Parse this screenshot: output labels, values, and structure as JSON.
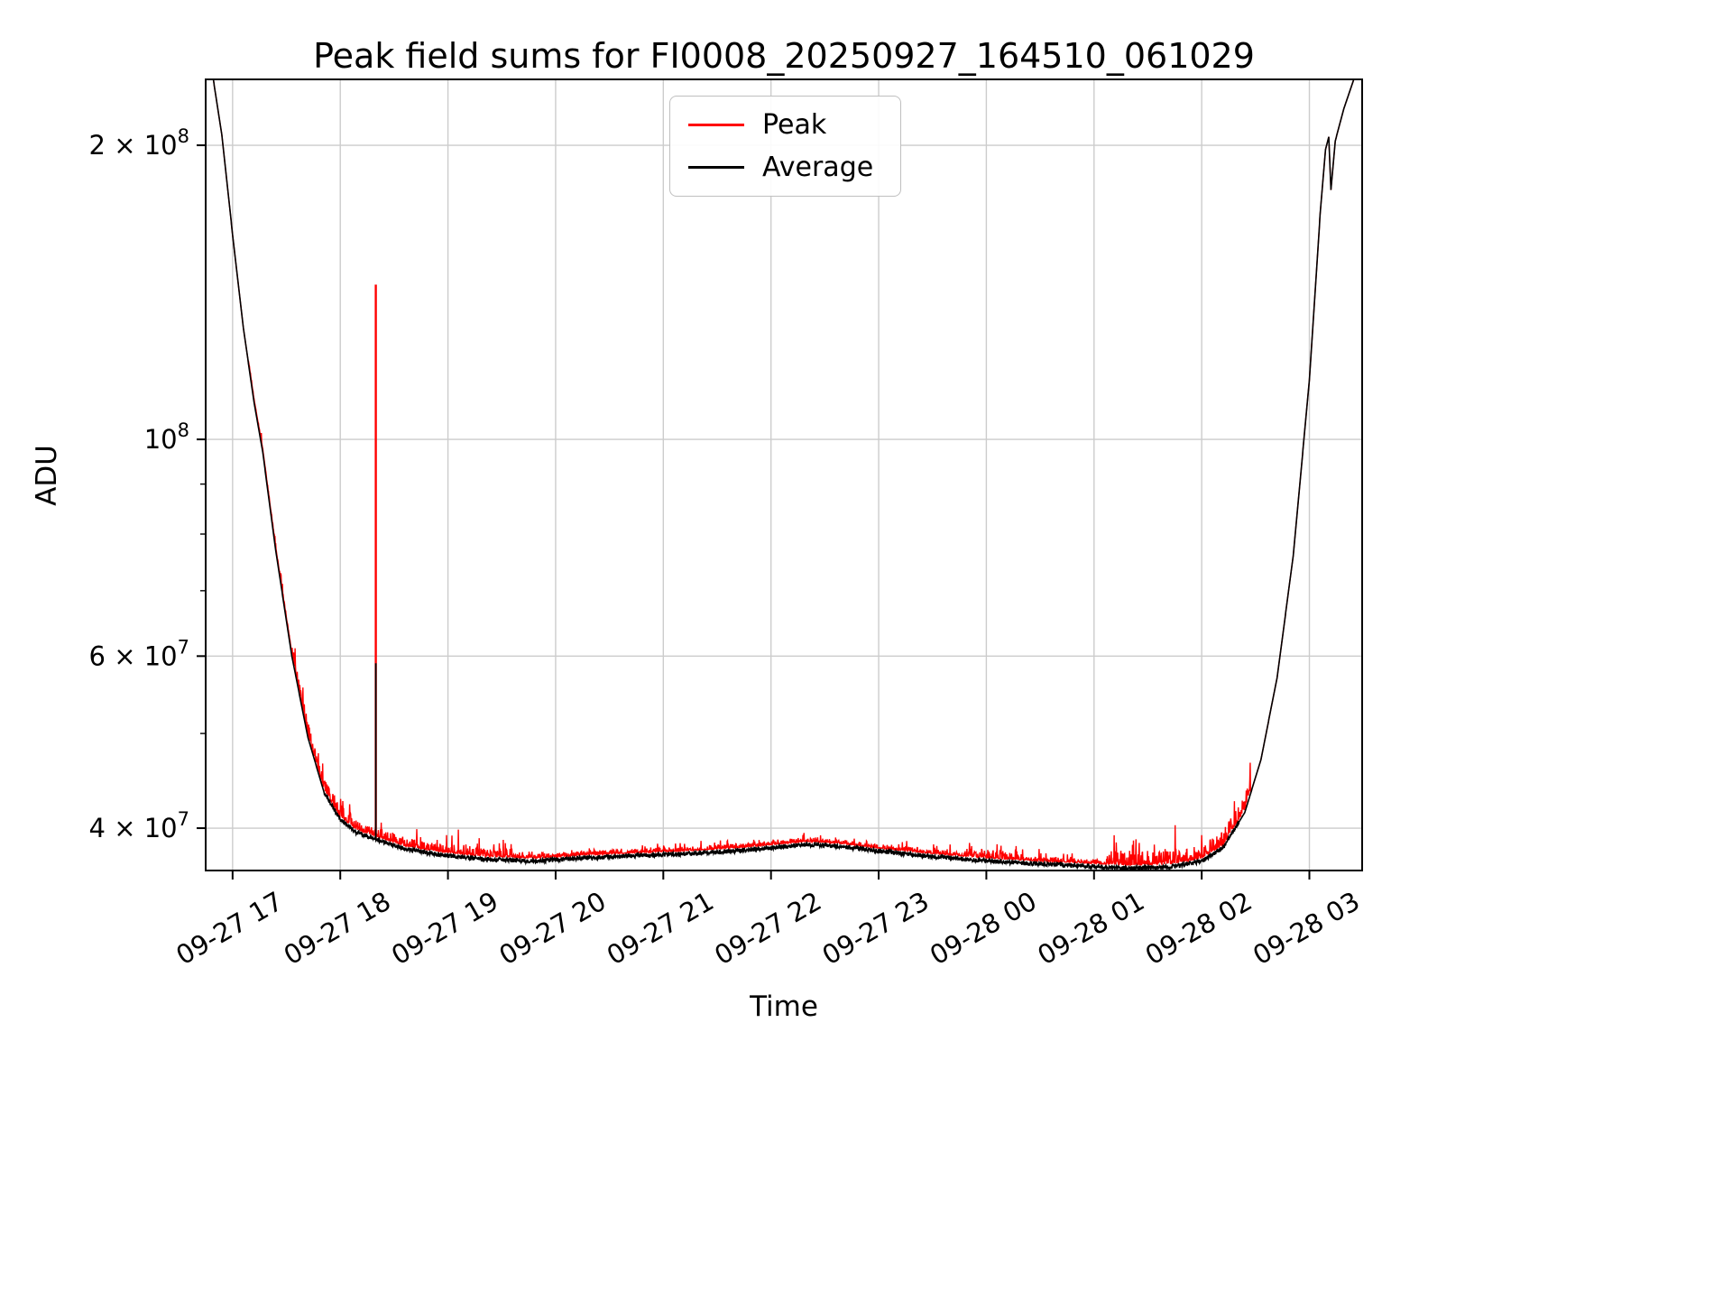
{
  "chart_data": {
    "type": "line",
    "title": "Peak field sums for FI0008_20250927_164510_061029",
    "xlabel": "Time",
    "ylabel": "ADU",
    "grid": true,
    "grid_color": "#cccccc",
    "background_color": "#ffffff",
    "x_axis": {
      "range_hours": [
        16.75,
        27.49
      ],
      "ticks": [
        {
          "hour": 17,
          "label": "09-27 17"
        },
        {
          "hour": 18,
          "label": "09-27 18"
        },
        {
          "hour": 19,
          "label": "09-27 19"
        },
        {
          "hour": 20,
          "label": "09-27 20"
        },
        {
          "hour": 21,
          "label": "09-27 21"
        },
        {
          "hour": 22,
          "label": "09-27 22"
        },
        {
          "hour": 23,
          "label": "09-27 23"
        },
        {
          "hour": 24,
          "label": "09-28 00"
        },
        {
          "hour": 25,
          "label": "09-28 01"
        },
        {
          "hour": 26,
          "label": "09-28 02"
        },
        {
          "hour": 27,
          "label": "09-28 03"
        }
      ]
    },
    "y_axis": {
      "scale": "log",
      "range": [
        36200000.0,
        233600000.0
      ],
      "ticks": [
        {
          "value": 200000000.0,
          "mantissa": "2 × 10",
          "exponent": "8"
        },
        {
          "value": 100000000.0,
          "mantissa": "10",
          "exponent": "8"
        },
        {
          "value": 60000000.0,
          "mantissa": "6 × 10",
          "exponent": "7"
        },
        {
          "value": 40000000.0,
          "mantissa": "4 × 10",
          "exponent": "7"
        }
      ],
      "minor_ticks": [
        50000000.0,
        70000000.0,
        80000000.0,
        90000000.0
      ]
    },
    "legend": {
      "position": "upper center",
      "entries": [
        {
          "name": "Peak",
          "color": "#ff0000"
        },
        {
          "name": "Average",
          "color": "#000000"
        }
      ]
    },
    "series": [
      {
        "name": "Peak",
        "color": "#ff0000",
        "role": "peak-envelope-noisy"
      },
      {
        "name": "Average",
        "color": "#000000",
        "role": "smooth-average"
      }
    ],
    "series_data": {
      "average_base": [
        [
          16.75,
          270000000.0
        ],
        [
          16.82,
          234000000.0
        ],
        [
          16.9,
          205000000.0
        ],
        [
          17.0,
          162000000.0
        ],
        [
          17.1,
          130000000.0
        ],
        [
          17.2,
          109000000.0
        ],
        [
          17.28,
          97000000.0
        ],
        [
          17.4,
          77000000.0
        ],
        [
          17.55,
          60000000.0
        ],
        [
          17.7,
          49500000.0
        ],
        [
          17.85,
          43500000.0
        ],
        [
          18.0,
          40800000.0
        ],
        [
          18.15,
          39600000.0
        ],
        [
          18.35,
          38900000.0
        ],
        [
          18.6,
          38100000.0
        ],
        [
          18.9,
          37600000.0
        ],
        [
          19.3,
          37200000.0
        ],
        [
          19.8,
          37000000.0
        ],
        [
          20.3,
          37300000.0
        ],
        [
          20.8,
          37500000.0
        ],
        [
          21.3,
          37700000.0
        ],
        [
          21.8,
          38000000.0
        ],
        [
          22.1,
          38300000.0
        ],
        [
          22.35,
          38500000.0
        ],
        [
          22.65,
          38300000.0
        ],
        [
          23.0,
          37900000.0
        ],
        [
          23.4,
          37500000.0
        ],
        [
          23.9,
          37100000.0
        ],
        [
          24.4,
          36800000.0
        ],
        [
          24.9,
          36600000.0
        ],
        [
          25.3,
          36400000.0
        ],
        [
          25.7,
          36500000.0
        ],
        [
          26.0,
          37000000.0
        ],
        [
          26.2,
          38200000.0
        ],
        [
          26.4,
          41500000.0
        ],
        [
          26.55,
          47000000.0
        ],
        [
          26.7,
          57000000.0
        ],
        [
          26.85,
          76000000.0
        ],
        [
          27.0,
          115000000.0
        ],
        [
          27.1,
          170000000.0
        ],
        [
          27.15,
          198000000.0
        ],
        [
          27.18,
          204000000.0
        ],
        [
          27.2,
          180000000.0
        ],
        [
          27.24,
          202000000.0
        ],
        [
          27.32,
          218000000.0
        ],
        [
          27.42,
          235000000.0
        ],
        [
          27.49,
          260000000.0
        ]
      ],
      "spikes": [
        {
          "t": 18.33,
          "peak": 144000000.0,
          "average": 59000000.0
        }
      ],
      "noise": {
        "seed": 11,
        "peak_offset": 0.007,
        "avg_amp": 0.005,
        "avg_from": 17.85,
        "avg_to": 26.35,
        "peak_regions": [
          {
            "from": 17.15,
            "to": 17.55,
            "amp": 0.006,
            "big": 0.02
          },
          {
            "from": 17.55,
            "to": 18.1,
            "amp": 0.03,
            "big": 0.055
          },
          {
            "from": 18.1,
            "to": 19.6,
            "amp": 0.022,
            "big": 0.04
          },
          {
            "from": 19.6,
            "to": 23.8,
            "amp": 0.01,
            "big": 0.018
          },
          {
            "from": 23.8,
            "to": 24.35,
            "amp": 0.022,
            "big": 0.035
          },
          {
            "from": 24.35,
            "to": 25.15,
            "amp": 0.01,
            "big": 0.025
          },
          {
            "from": 25.15,
            "to": 26.45,
            "amp": 0.035,
            "big": 0.065
          }
        ]
      },
      "samples_per_hour": 300
    }
  }
}
